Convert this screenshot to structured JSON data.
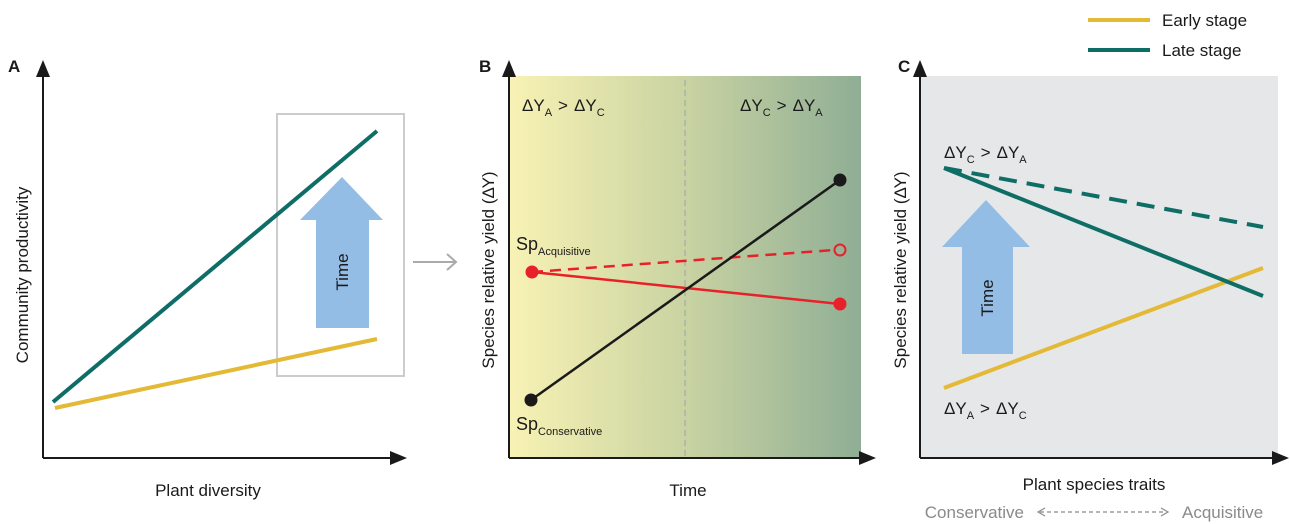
{
  "legend": {
    "items": [
      {
        "label": "Early stage",
        "color": "#e3b935"
      },
      {
        "label": "Late stage",
        "color": "#0e6e66"
      }
    ]
  },
  "panel_a": {
    "label": "A",
    "x_title": "Plant diversity",
    "y_title": "Community productivity",
    "arrow_label": "Time"
  },
  "panel_b": {
    "label": "B",
    "x_title": "Time",
    "y_title": "Species relative yield (ΔΥ)",
    "left_text": {
      "d1": "ΔY",
      "s1": "A",
      "op": ">",
      "d2": "ΔY",
      "s2": "C"
    },
    "right_text": {
      "d1": "ΔY",
      "s1": "C",
      "op": ">",
      "d2": "ΔY",
      "s2": "A"
    },
    "sp_acq": {
      "main": "Sp",
      "sub": "Acquisitive"
    },
    "sp_cons": {
      "main": "Sp",
      "sub": "Conservative"
    }
  },
  "panel_c": {
    "label": "C",
    "x_title": "Plant species traits",
    "y_title": "Species relative yield (ΔΥ)",
    "arrow_label": "Time",
    "top_text": {
      "d1": "ΔY",
      "s1": "C",
      "op": ">",
      "d2": "ΔY",
      "s2": "A"
    },
    "bottom_text": {
      "d1": "ΔY",
      "s1": "A",
      "op": ">",
      "d2": "ΔY",
      "s2": "C"
    },
    "gradient_left": "Conservative",
    "gradient_right": "Acquisitive"
  },
  "colors": {
    "early": "#e3b935",
    "late": "#0e6e66",
    "acquisitive": "#e8202a",
    "conservative": "#1a1a1a",
    "time_arrow": "#94bde6",
    "panel_c_bg": "#e6e7e8"
  }
}
